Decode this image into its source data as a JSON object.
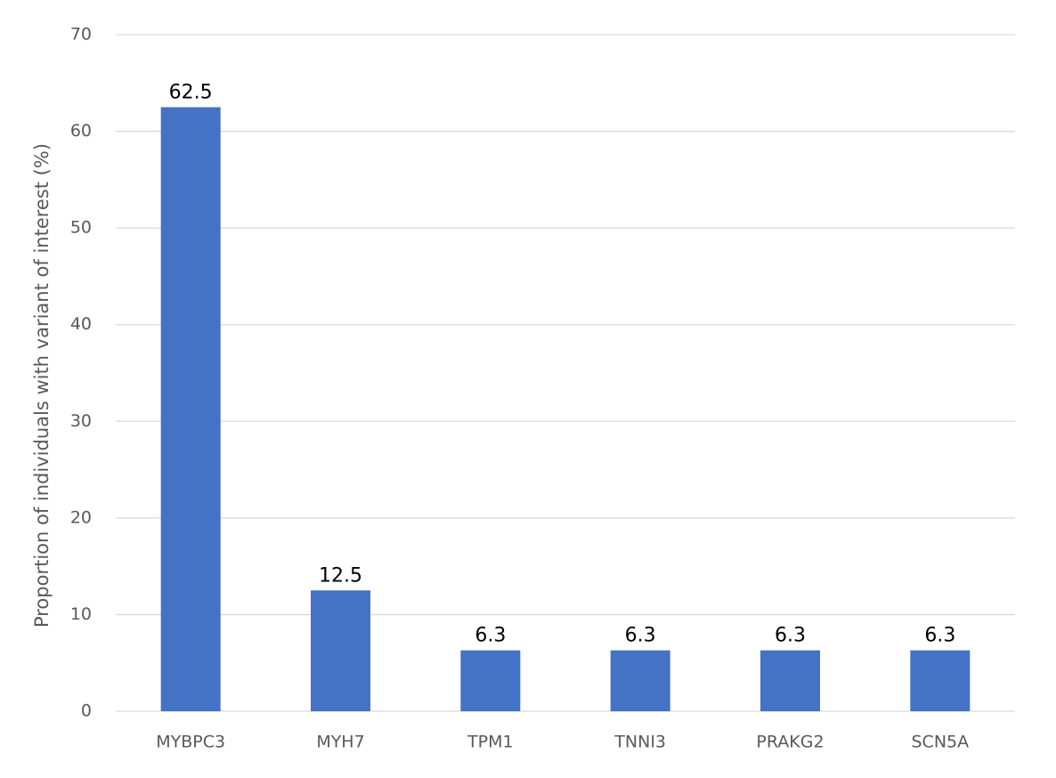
{
  "chart_data": {
    "type": "bar",
    "y_axis_label": "Proportion of individuals with variant of interest (%)",
    "categories": [
      "MYBPC3",
      "MYH7",
      "TPM1",
      "TNNI3",
      "PRAKG2",
      "SCN5A"
    ],
    "values": [
      62.5,
      12.5,
      6.3,
      6.3,
      6.3,
      6.3
    ],
    "color": "#4472c4",
    "ylim": [
      0,
      70
    ],
    "yticks": [
      0,
      10,
      20,
      30,
      40,
      50,
      60,
      70
    ],
    "grid": true
  }
}
